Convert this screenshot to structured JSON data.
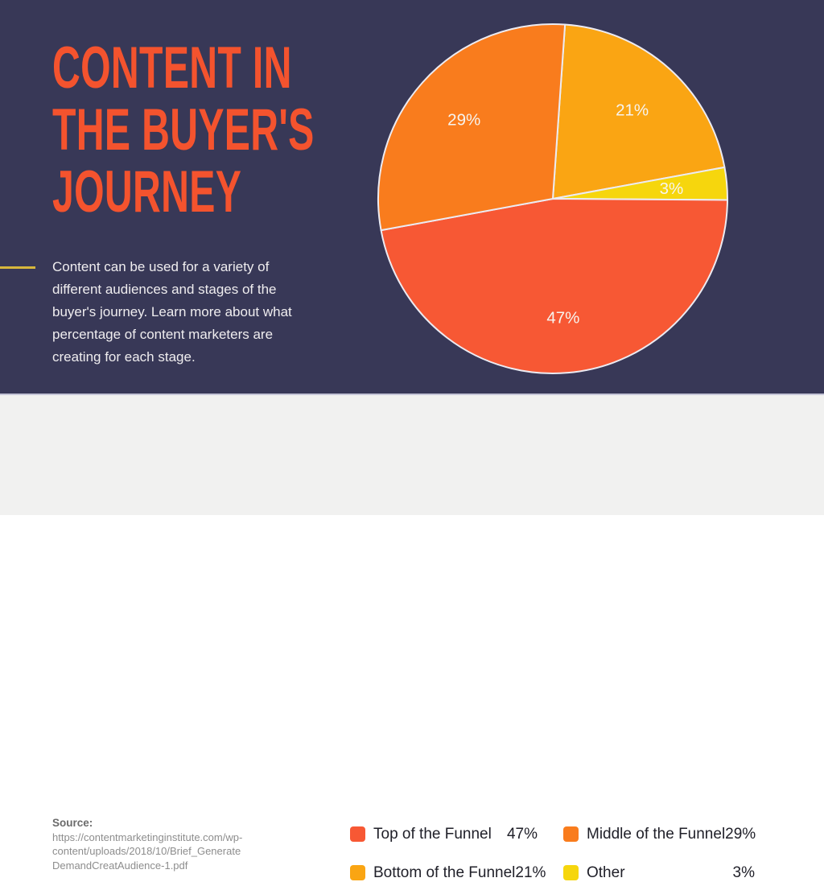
{
  "page": {
    "background_top": "#383857",
    "background_bottom": "#F1F1F0",
    "accent_line_color": "#D7B73C"
  },
  "header": {
    "title_lines": [
      "CONTENT IN",
      "THE BUYER'S",
      "JOURNEY"
    ],
    "title_color": "#F4532E",
    "description": "Content can be used for a variety of different audiences and stages of the buyer's journey. Learn more about what percentage of content marketers are creating for each stage."
  },
  "source": {
    "label": "Source:",
    "url_lines": [
      "https://contentmarketinginstitute.com/wp-",
      "content/uploads/2018/10/Brief_Generate",
      "DemandCreatAudience-1.pdf"
    ]
  },
  "chart_data": {
    "type": "pie",
    "title": "Content in the Buyer's Journey",
    "categories": [
      "Top of the Funnel",
      "Middle of the Funnel",
      "Bottom of the Funnel",
      "Other"
    ],
    "values": [
      47,
      29,
      21,
      3
    ],
    "start_angle_deg": 4,
    "legend_position": "bottom",
    "slice_label_color": "#F7F4EF",
    "slice_stroke_color": "#ECEBF2",
    "slices": [
      {
        "label": "Bottom of the Funnel",
        "value": 21,
        "text": "21%",
        "color": "#FAA513"
      },
      {
        "label": "Other",
        "value": 3,
        "text": "3%",
        "color": "#F6D60D"
      },
      {
        "label": "Top of the Funnel",
        "value": 47,
        "text": "47%",
        "color": "#F75834"
      },
      {
        "label": "Middle of the Funnel",
        "value": 29,
        "text": "29%",
        "color": "#F97C1D"
      }
    ]
  },
  "legend": {
    "items": [
      {
        "label": "Top of the Funnel",
        "value_text": "47%",
        "color": "#F75834"
      },
      {
        "label": "Middle of the Funnel",
        "value_text": "29%",
        "color": "#F97C1D"
      },
      {
        "label": "Bottom of the Funnel",
        "value_text": "21%",
        "color": "#FAA513"
      },
      {
        "label": "Other",
        "value_text": "3%",
        "color": "#F6D60D"
      }
    ]
  }
}
